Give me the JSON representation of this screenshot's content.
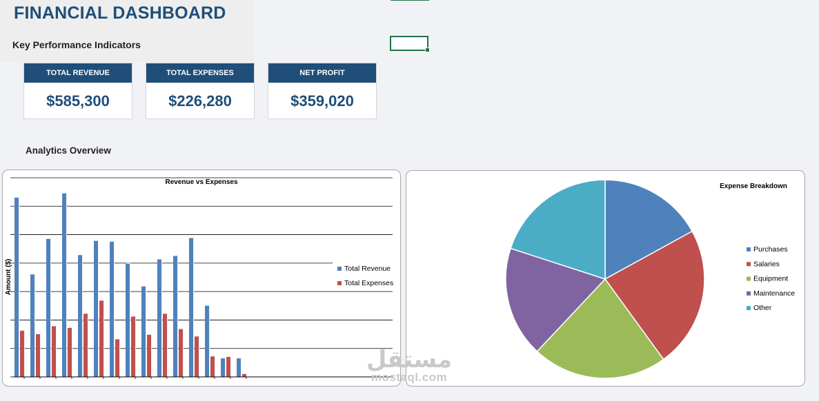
{
  "dashboard": {
    "title": "FINANCIAL DASHBOARD",
    "kpi_heading": "Key Performance Indicators",
    "analytics_heading": "Analytics Overview"
  },
  "kpis": [
    {
      "label": "TOTAL REVENUE",
      "value": "$585,300"
    },
    {
      "label": "TOTAL EXPENSES",
      "value": "$226,280"
    },
    {
      "label": "NET PROFIT",
      "value": "$359,020"
    }
  ],
  "colors": {
    "accent": "#1f4e79",
    "selection": "#217346",
    "revenue": "#4f81bd",
    "expenses": "#c0504d"
  },
  "watermark": {
    "arabic": "مستقل",
    "latin": "mostaql.com"
  },
  "chart_data": [
    {
      "type": "bar",
      "title": "Revenue vs Expenses",
      "ylabel": "Amount ($)",
      "xlabel": "",
      "grid": true,
      "legend_position": "right",
      "categories": [
        "",
        "",
        "",
        "",
        "",
        "",
        "",
        "",
        "",
        "",
        "",
        "",
        "",
        "",
        ""
      ],
      "ylim": [
        0,
        7
      ],
      "series": [
        {
          "name": "Total Revenue",
          "color": "#4f81bd",
          "values": [
            6.3,
            3.6,
            4.85,
            6.45,
            4.28,
            4.78,
            4.75,
            3.98,
            3.18,
            4.13,
            4.25,
            4.88,
            2.5,
            0.65,
            0.65
          ]
        },
        {
          "name": "Total Expenses",
          "color": "#c0504d",
          "values": [
            1.62,
            1.5,
            1.78,
            1.72,
            2.22,
            2.68,
            1.32,
            2.12,
            1.48,
            2.22,
            1.68,
            1.42,
            0.72,
            0.7,
            0.1
          ]
        }
      ]
    },
    {
      "type": "pie",
      "title": "Expense Breakdown",
      "legend_position": "right",
      "slices": [
        {
          "name": "Purchases",
          "value": 17,
          "color": "#4f81bd"
        },
        {
          "name": "Salaries",
          "value": 23,
          "color": "#c0504d"
        },
        {
          "name": "Equipment",
          "value": 22,
          "color": "#9bbb59"
        },
        {
          "name": "Maintenance",
          "value": 18,
          "color": "#8064a2"
        },
        {
          "name": "Other",
          "value": 20,
          "color": "#4bacc6"
        }
      ]
    }
  ]
}
